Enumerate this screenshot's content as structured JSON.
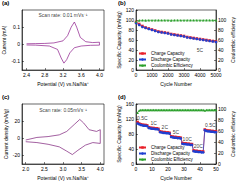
{
  "chart_data": [
    {
      "type": "line",
      "title": "(a)",
      "xlabel": "Potential (V) vs.Na/Na⁺",
      "ylabel": "Current (mA)",
      "annotations": [
        {
          "text": "Scan rate: 0.01 mVs⁻¹",
          "x": 3.2,
          "y": 0.17
        }
      ],
      "x": [
        2.4,
        2.6,
        2.8,
        3.0,
        3.2,
        3.3,
        3.38,
        3.45,
        3.5,
        3.58,
        3.7,
        3.85,
        4.0,
        4.0,
        3.8,
        3.6,
        3.45,
        3.35,
        3.28,
        3.22,
        3.16,
        3.08,
        2.9,
        2.6,
        2.4
      ],
      "series": [
        {
          "color": "#8b1a89",
          "line_style": "solid",
          "values": [
            0.003,
            0.004,
            0.005,
            0.008,
            0.02,
            0.05,
            0.1,
            0.13,
            0.1,
            0.04,
            0.015,
            0.01,
            0.012,
            -0.005,
            -0.006,
            -0.01,
            -0.02,
            -0.05,
            -0.09,
            -0.11,
            -0.08,
            -0.03,
            -0.01,
            -0.005,
            -0.004
          ]
        }
      ],
      "xlim": [
        2.3,
        4.1
      ],
      "xticks": [
        2.4,
        2.8,
        3.2,
        3.6,
        {
          "value": 4,
          "label": "4.0"
        }
      ],
      "ylim": [
        -0.15,
        0.2
      ],
      "yticks": [
        -0.1,
        0,
        0.1
      ],
      "grid": false
    },
    {
      "type": "line",
      "title": "(b)",
      "xlabel": "Cycle Number",
      "ylabel": "Specific Capacity (mAh/g)",
      "y2label": "Coulombic efficiency",
      "annotations": [
        {
          "text": "5C",
          "x": 4000,
          "y": 40
        }
      ],
      "x": [
        0,
        200,
        400,
        600,
        800,
        1000,
        1200,
        1400,
        1600,
        1800,
        2000,
        2200,
        2400,
        2600,
        2800,
        3000,
        3200,
        3400,
        3600,
        3800,
        4000,
        4200,
        4400,
        4600,
        4800,
        5000
      ],
      "series": [
        {
          "name": "Charge Capacity",
          "color": "#e8202a",
          "marker": "square",
          "line_style": "solid",
          "values": [
            96,
            92,
            88,
            85,
            83,
            81,
            79,
            77,
            76,
            75,
            74,
            72,
            71,
            70,
            69,
            68,
            66,
            65,
            64,
            63,
            62,
            61,
            60,
            59,
            58,
            57
          ]
        },
        {
          "name": "Discharge Capacity",
          "color": "#1f3fd1",
          "marker": "circle",
          "line_style": "solid",
          "values": [
            94,
            90,
            86,
            84,
            82,
            80,
            78,
            76,
            75,
            74,
            73,
            71,
            70,
            69,
            68,
            67,
            65,
            64,
            63,
            62,
            61,
            60,
            59,
            58,
            57,
            56
          ]
        },
        {
          "name": "Coulombic Efficiency",
          "color": "#2ca02c",
          "marker": "triangle",
          "line_style": "solid",
          "axis": "y2",
          "values": [
            97,
            99.2,
            99.4,
            99.3,
            99.5,
            99.4,
            99.6,
            99.5,
            99.4,
            99.6,
            99.5,
            99.3,
            99.5,
            99.6,
            99.4,
            99.5,
            99.6,
            99.5,
            99.4,
            99.6,
            99.5,
            99.4,
            99.6,
            99.5,
            99.4,
            99.5
          ]
        }
      ],
      "xlim": [
        0,
        5000
      ],
      "xticks": [
        0,
        1000,
        2000,
        3000,
        4000,
        5000
      ],
      "ylim": [
        0,
        120
      ],
      "yticks": [
        0,
        20,
        40,
        60,
        80,
        100,
        120
      ],
      "y2lim": [
        0,
        120
      ],
      "y2ticks": [
        0,
        20,
        40,
        60,
        80,
        100
      ],
      "legend": "lower left",
      "grid": false
    },
    {
      "type": "line",
      "title": "(c)",
      "xlabel": "Potential (V) vs.Na/Na⁺",
      "ylabel": "Current density (mA/g)",
      "annotations": [
        {
          "text": "Scan rate: 0.05mVs⁻¹",
          "x": 3.0,
          "y": 33
        }
      ],
      "x": [
        2.0,
        2.3,
        2.6,
        2.9,
        3.1,
        3.3,
        3.45,
        3.55,
        3.7,
        3.9,
        4.0,
        4.0,
        3.8,
        3.6,
        3.4,
        3.25,
        3.1,
        2.9,
        2.6,
        2.3,
        2.0
      ],
      "series": [
        {
          "color": "#7b1c79",
          "line_style": "solid",
          "values": [
            -2,
            1,
            2,
            4,
            8,
            16,
            22,
            18,
            10,
            8,
            10,
            -6,
            -5,
            -8,
            -14,
            -19,
            -15,
            -10,
            -7,
            -5,
            -4
          ]
        }
      ],
      "xlim": [
        1.9,
        4.1
      ],
      "xticks": [
        {
          "value": 2,
          "label": "2.0"
        },
        2.5,
        {
          "value": 3,
          "label": "3.0"
        },
        3.5,
        {
          "value": 4,
          "label": "4.0"
        }
      ],
      "ylim": [
        -30,
        40
      ],
      "yticks": [
        -20,
        0,
        20
      ],
      "grid": false
    },
    {
      "type": "line",
      "title": "(d)",
      "xlabel": "Cycle Number",
      "ylabel": "Specific Capacity (mAh/g)",
      "y2label": "Coulombic efficiency",
      "annotations": [
        {
          "text": "0.5C",
          "x": 4,
          "y": 124
        },
        {
          "text": "1C",
          "x": 11,
          "y": 110
        },
        {
          "text": "2C",
          "x": 18,
          "y": 99
        },
        {
          "text": "5C",
          "x": 25,
          "y": 86
        },
        {
          "text": "10C",
          "x": 32,
          "y": 68
        },
        {
          "text": "20C",
          "x": 39,
          "y": 48
        },
        {
          "text": "0.5C",
          "x": 46.5,
          "y": 104
        }
      ],
      "x": [
        1,
        2,
        3,
        4,
        5,
        6,
        7,
        8,
        9,
        10,
        11,
        12,
        13,
        14,
        15,
        16,
        17,
        18,
        19,
        20,
        21,
        22,
        23,
        24,
        25,
        26,
        27,
        28,
        29,
        30,
        31,
        32,
        33,
        34,
        35,
        36,
        37,
        38,
        39,
        40,
        41,
        42,
        43,
        44,
        45,
        46,
        47,
        48,
        49,
        50
      ],
      "series": [
        {
          "name": "Charge Capacity",
          "color": "#e8202a",
          "marker": "square",
          "line_style": "solid",
          "values": [
            112,
            108,
            106,
            105,
            104,
            104,
            103,
            98,
            97,
            96,
            96,
            95,
            95,
            94,
            87,
            86,
            85,
            85,
            84,
            84,
            83,
            74,
            73,
            72,
            72,
            71,
            71,
            70,
            56,
            55,
            55,
            54,
            54,
            53,
            53,
            36,
            35,
            35,
            34,
            34,
            33,
            33,
            92,
            90,
            89,
            89,
            88,
            88,
            87,
            87
          ]
        },
        {
          "name": "Discharge Capacity",
          "color": "#1f3fd1",
          "marker": "circle",
          "line_style": "solid",
          "values": [
            108,
            106,
            104,
            103,
            102,
            102,
            101,
            96,
            95,
            94,
            94,
            93,
            93,
            92,
            85,
            84,
            83,
            83,
            82,
            82,
            81,
            72,
            71,
            70,
            70,
            69,
            69,
            68,
            54,
            53,
            53,
            52,
            52,
            51,
            51,
            34,
            33,
            33,
            32,
            32,
            31,
            31,
            90,
            88,
            87,
            87,
            86,
            86,
            85,
            85
          ]
        },
        {
          "name": "Coulombic Efficiency",
          "color": "#2ca02c",
          "marker": "triangle",
          "line_style": "solid",
          "axis": "y2",
          "values": [
            94,
            98,
            99,
            99,
            99,
            99,
            99,
            99,
            99,
            99,
            99,
            99,
            99,
            99,
            99,
            99,
            99,
            99,
            99,
            99,
            99,
            99,
            99,
            99,
            99,
            99,
            99,
            99,
            99,
            99,
            99,
            99,
            99,
            99,
            99,
            99,
            99,
            99,
            99,
            99,
            99,
            99,
            98,
            99,
            99,
            99,
            99,
            99,
            99,
            99
          ]
        }
      ],
      "xlim": [
        0,
        50
      ],
      "xticks": [
        0,
        10,
        20,
        30,
        40,
        50
      ],
      "ylim": [
        0,
        160
      ],
      "yticks": [
        0,
        40,
        80,
        120,
        160
      ],
      "y2lim": [
        0,
        110
      ],
      "y2ticks": [
        0,
        20,
        40,
        60,
        80,
        100
      ],
      "legend": "lower left",
      "grid": false
    }
  ]
}
